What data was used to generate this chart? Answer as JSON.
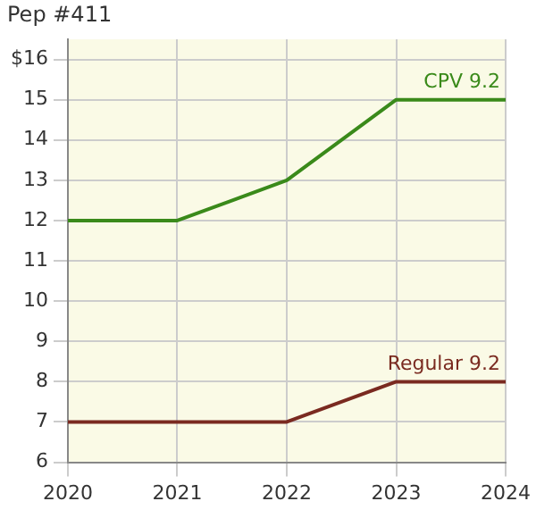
{
  "chart_data": {
    "type": "line",
    "title": "Pep #411",
    "ylabel": "$",
    "x": [
      2020,
      2021,
      2022,
      2023,
      2024
    ],
    "series": [
      {
        "name": "CPV 9.2",
        "color": "#3a8a1a",
        "values": [
          12,
          12,
          13,
          15,
          15
        ]
      },
      {
        "name": "Regular 9.2",
        "color": "#7a2a20",
        "values": [
          7,
          7,
          7,
          8,
          8
        ]
      }
    ],
    "xlim": [
      2020,
      2024
    ],
    "xticks": [
      2020,
      2021,
      2022,
      2023,
      2024
    ],
    "ylim": [
      6,
      16.5
    ],
    "yticks": [
      6,
      7,
      8,
      9,
      10,
      11,
      12,
      13,
      14,
      15,
      16
    ],
    "grid": true,
    "marker": "none",
    "line_style": "solid"
  }
}
